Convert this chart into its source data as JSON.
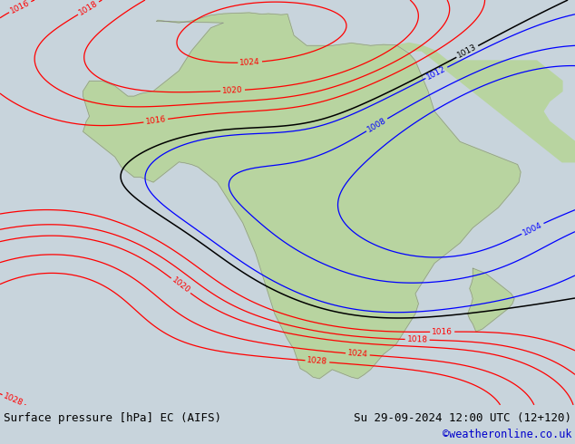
{
  "title_left": "Surface pressure [hPa] EC (AIFS)",
  "title_right": "Su 29-09-2024 12:00 UTC (12+120)",
  "copyright": "©weatheronline.co.uk",
  "bg_color": "#c8d4dc",
  "land_color": "#b8d4a0",
  "fig_width": 6.34,
  "fig_height": 4.9,
  "dpi": 100,
  "bottom_bar_color": "#e8e8e8",
  "title_fontsize": 9.0,
  "copyright_color": "#0000cc",
  "text_color": "#000000",
  "map_bg": "#c8d4dc"
}
